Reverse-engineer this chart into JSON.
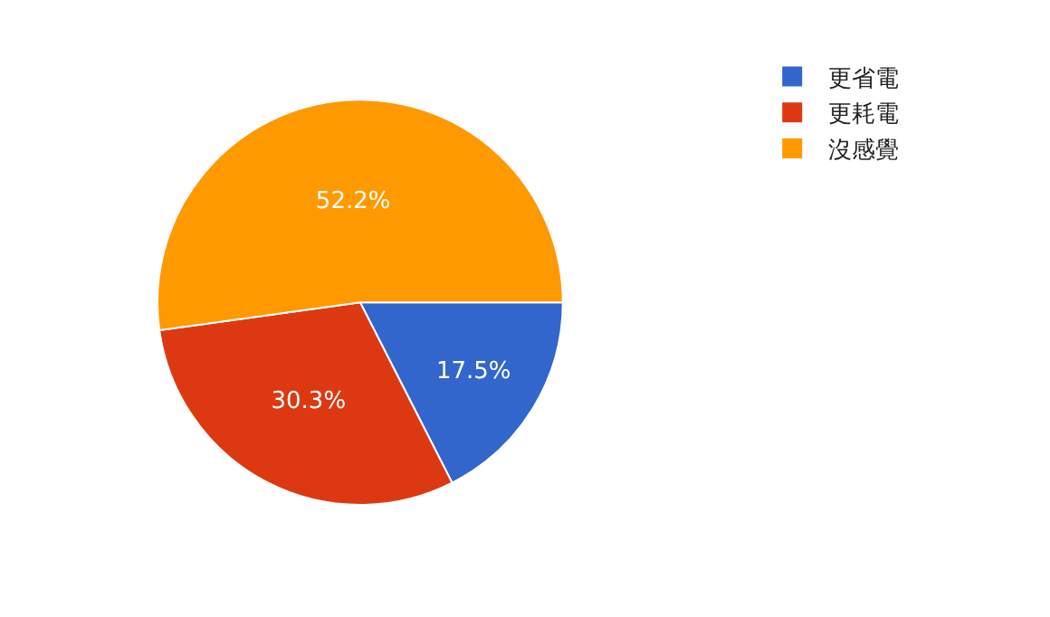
{
  "chart_data": {
    "type": "pie",
    "categories": [
      "更省電",
      "更耗電",
      "沒感覺"
    ],
    "values": [
      17.5,
      30.3,
      52.2
    ],
    "value_labels": [
      "17.5%",
      "30.3%",
      "52.2%"
    ],
    "colors": [
      "#3366cc",
      "#dc3912",
      "#ff9900"
    ],
    "legend": "top right"
  }
}
